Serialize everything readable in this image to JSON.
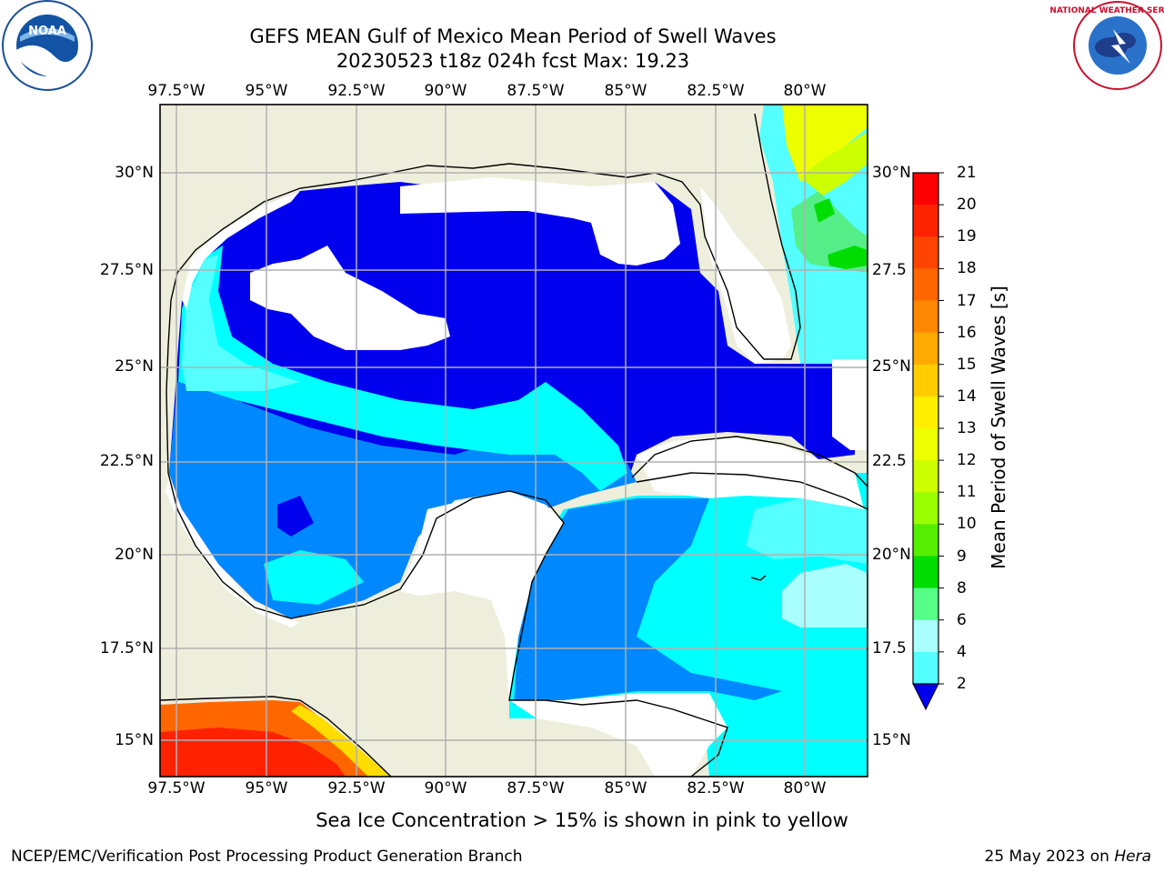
{
  "title": {
    "line1": "GEFS MEAN Gulf of Mexico Mean Period of Swell Waves",
    "line2": "20230523 t18z 024h fcst   Max: 19.23"
  },
  "logos": {
    "left": "noaa-logo",
    "right": "national-weather-service-logo",
    "right_text": "NATIONAL WEATHER SERVICE"
  },
  "map": {
    "lon_ticks": [
      "97.5°W",
      "95°W",
      "92.5°W",
      "90°W",
      "87.5°W",
      "85°W",
      "82.5°W",
      "80°W"
    ],
    "lat_ticks_left": [
      "30°N",
      "27.5°N",
      "25°N",
      "22.5°N",
      "20°N",
      "17.5°N",
      "15°N"
    ],
    "lat_ticks_right": [
      "30°N",
      "27.5",
      "25°N",
      "22.5",
      "20°N",
      "17.5",
      "15°N"
    ],
    "lon_range": [
      -98,
      -79
    ],
    "lat_range": [
      14,
      31.5
    ],
    "land_color": "#eeeedc",
    "no_data_color": "#ffffff"
  },
  "colorbar": {
    "label": "Mean Period of Swell Waves [s]",
    "ticks": [
      "21",
      "20",
      "19",
      "18",
      "17",
      "16",
      "15",
      "14",
      "13",
      "12",
      "11",
      "10",
      "9",
      "8",
      "6",
      "4",
      "2"
    ],
    "colors": [
      "#ff0000",
      "#ff2200",
      "#ff4400",
      "#ff6600",
      "#ff8800",
      "#ffaa00",
      "#ffcc00",
      "#ffee00",
      "#eeff00",
      "#ccff00",
      "#99ff00",
      "#55ee00",
      "#00dd00",
      "#55ff88",
      "#aaffff",
      "#55ffff",
      "#00ffff",
      "#0088ff"
    ],
    "under_color": "#0000ee"
  },
  "footer": {
    "note": "Sea Ice Concentration > 15% is shown in pink to yellow",
    "credit_left": "NCEP/EMC/Verification Post Processing Product Generation Branch",
    "credit_right_date": "25 May 2023 on ",
    "credit_right_host": "Hera"
  }
}
